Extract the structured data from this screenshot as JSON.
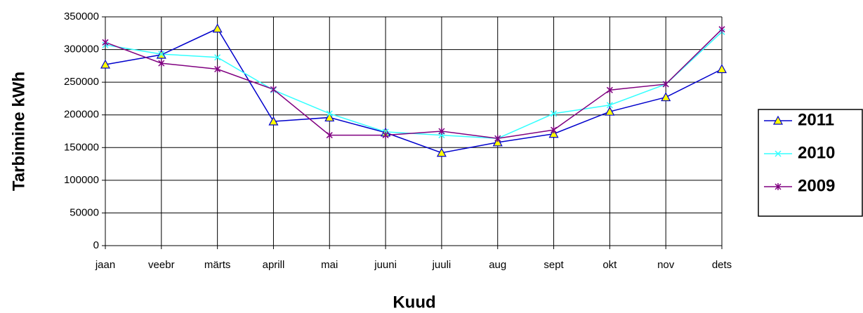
{
  "chart_data": {
    "type": "line",
    "xlabel": "Kuud",
    "ylabel": "Tarbimine  kWh",
    "categories": [
      "jaan",
      "veebr",
      "märts",
      "aprill",
      "mai",
      "juuni",
      "juuli",
      "aug",
      "sept",
      "okt",
      "nov",
      "dets"
    ],
    "series": [
      {
        "name": "2011",
        "color": "#0000cc",
        "marker": "triangle",
        "marker_fill": "#ffff00",
        "values": [
          277000,
          292000,
          332000,
          190000,
          196000,
          173000,
          142000,
          158000,
          171000,
          205000,
          227000,
          270000
        ]
      },
      {
        "name": "2010",
        "color": "#33ffff",
        "marker": "x",
        "values": [
          307000,
          293000,
          288000,
          238000,
          202000,
          174000,
          169000,
          164000,
          202000,
          215000,
          247000,
          327000
        ]
      },
      {
        "name": "2009",
        "color": "#800080",
        "marker": "star",
        "values": [
          311000,
          279000,
          270000,
          239000,
          169000,
          169000,
          175000,
          164000,
          177000,
          238000,
          247000,
          331000
        ]
      }
    ],
    "ylim": [
      0,
      350000
    ],
    "yticks": [
      0,
      50000,
      100000,
      150000,
      200000,
      250000,
      300000,
      350000
    ],
    "grid": true,
    "legend": "right"
  }
}
